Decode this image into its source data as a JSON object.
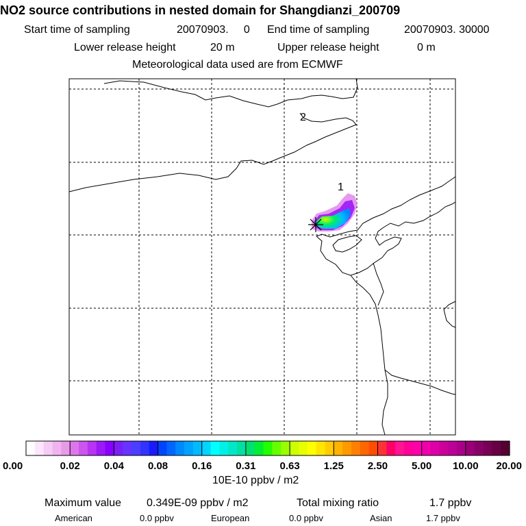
{
  "chart_data": {
    "type": "heatmap",
    "title": "NO2 source contributions in nested domain for Shangdianzi_200709",
    "subtitle_lines": [
      {
        "left_label": "Start time of sampling",
        "left_value": "20070903.     0",
        "right_label": "End time of sampling",
        "right_value": "20070903. 30000"
      },
      {
        "left_label": "Lower release height",
        "left_value": "20 m",
        "right_label": "Upper release height",
        "right_value": "0 m"
      }
    ],
    "met_note": "Meteorological data used are from ECMWF",
    "map_labels": [
      "1",
      "2"
    ],
    "grid": true,
    "colorbar": {
      "unit": "10E-10 ppbv / m2",
      "tick_labels": [
        "0.00",
        "0.02",
        "0.04",
        "0.08",
        "0.16",
        "0.31",
        "0.63",
        "1.25",
        "2.50",
        "5.00",
        "10.00",
        "20.00"
      ],
      "colors": [
        "#ffffff",
        "#fbe6fb",
        "#f5ccf5",
        "#f0b3f0",
        "#e89ae9",
        "#dd77e9",
        "#cc55ee",
        "#b833f3",
        "#9c19f6",
        "#8800ff",
        "#7a1ff5",
        "#6633ff",
        "#4d3dff",
        "#3333ff",
        "#1a1aff",
        "#0044ff",
        "#0066ff",
        "#0088ff",
        "#00a3ff",
        "#00bbff",
        "#00d5ff",
        "#00ffff",
        "#00f0e6",
        "#00e6c8",
        "#00e0a0",
        "#00e070",
        "#00ee33",
        "#22ff00",
        "#66ff00",
        "#99ff00",
        "#ccff00",
        "#e6ff00",
        "#ffff00",
        "#ffe600",
        "#ffcc00",
        "#ffb300",
        "#ff9900",
        "#ff8000",
        "#ff6600",
        "#ff4d00",
        "#ff3333",
        "#ff0066",
        "#ff1493",
        "#ff0099",
        "#ff00aa",
        "#ee00aa",
        "#dd00aa",
        "#cc0099",
        "#bb0099",
        "#aa0088",
        "#990077",
        "#880066",
        "#770055",
        "#660044",
        "#550033"
      ]
    },
    "stats": {
      "max_label": "Maximum value",
      "max_value": "0.349E-09 ppbv / m2",
      "total_label": "Total mixing ratio",
      "total_value": "1.7 ppbv",
      "regions": [
        {
          "name": "American",
          "value": "0.0 ppbv"
        },
        {
          "name": "European",
          "value": "0.0 ppbv"
        },
        {
          "name": "Asian",
          "value": "1.7 ppbv"
        }
      ]
    }
  }
}
